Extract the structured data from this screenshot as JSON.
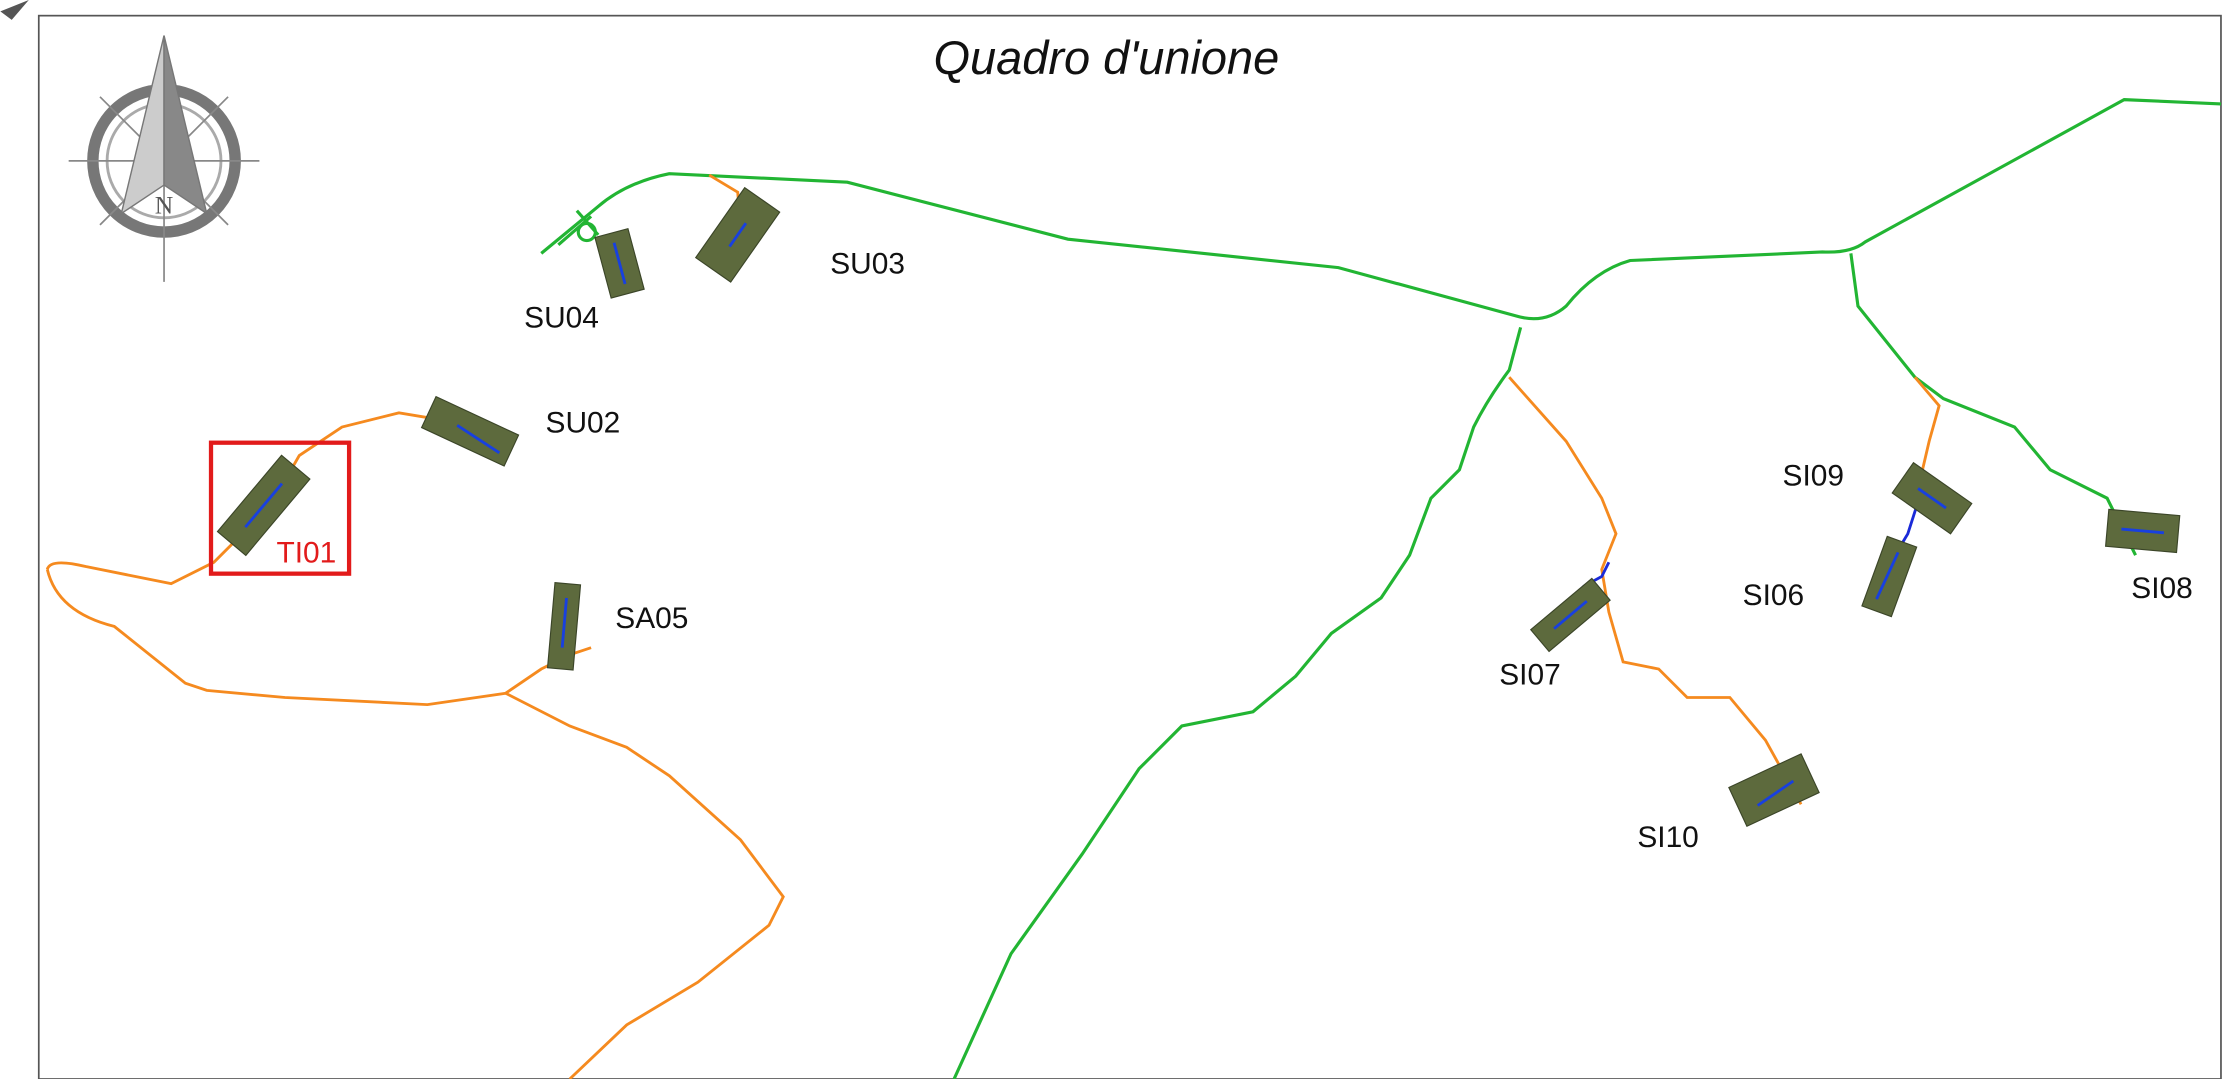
{
  "title": "Quadro d'unione",
  "sites": [
    {
      "label": "SU04"
    },
    {
      "label": "SU03"
    },
    {
      "label": "SU02"
    },
    {
      "label": "TI01"
    },
    {
      "label": "SA05"
    },
    {
      "label": "SI09"
    },
    {
      "label": "SI06"
    },
    {
      "label": "SI07"
    },
    {
      "label": "SI08"
    },
    {
      "label": "SI10"
    }
  ]
}
